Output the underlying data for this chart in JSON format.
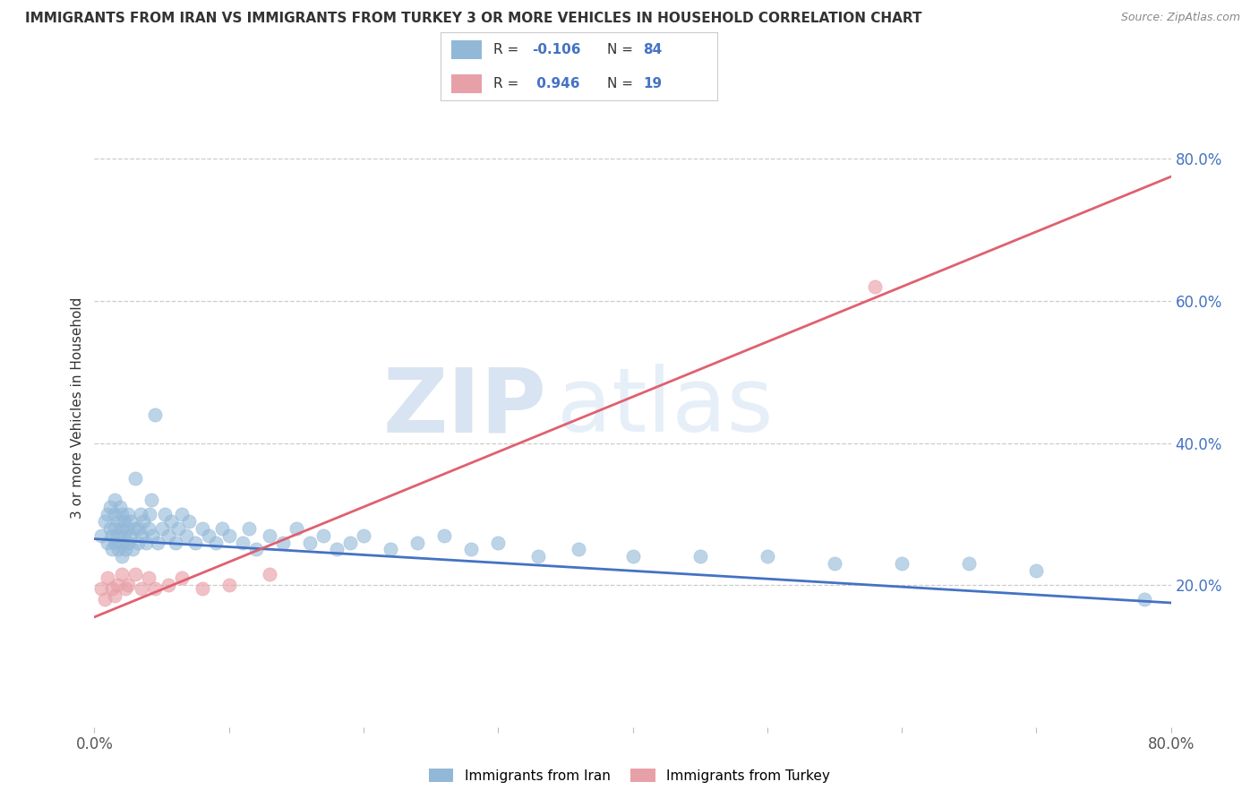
{
  "title": "IMMIGRANTS FROM IRAN VS IMMIGRANTS FROM TURKEY 3 OR MORE VEHICLES IN HOUSEHOLD CORRELATION CHART",
  "source": "Source: ZipAtlas.com",
  "ylabel": "3 or more Vehicles in Household",
  "xlim": [
    0,
    0.8
  ],
  "ylim": [
    0,
    0.9
  ],
  "right_yticks": [
    0.2,
    0.4,
    0.6,
    0.8
  ],
  "right_yticklabels": [
    "20.0%",
    "40.0%",
    "60.0%",
    "80.0%"
  ],
  "iran_color": "#92b8d8",
  "turkey_color": "#e8a0a8",
  "iran_line_color": "#4472c4",
  "turkey_line_color": "#e06070",
  "iran_R": -0.106,
  "iran_N": 84,
  "turkey_R": 0.946,
  "turkey_N": 19,
  "legend_iran_label": "Immigrants from Iran",
  "legend_turkey_label": "Immigrants from Turkey",
  "watermark_zip": "ZIP",
  "watermark_atlas": "atlas",
  "background_color": "#ffffff",
  "iran_scatter_x": [
    0.005,
    0.008,
    0.01,
    0.01,
    0.012,
    0.012,
    0.013,
    0.013,
    0.015,
    0.015,
    0.015,
    0.015,
    0.017,
    0.018,
    0.018,
    0.019,
    0.02,
    0.02,
    0.02,
    0.02,
    0.022,
    0.022,
    0.023,
    0.024,
    0.025,
    0.025,
    0.026,
    0.027,
    0.028,
    0.03,
    0.03,
    0.032,
    0.033,
    0.034,
    0.035,
    0.036,
    0.038,
    0.04,
    0.041,
    0.042,
    0.043,
    0.045,
    0.047,
    0.05,
    0.052,
    0.055,
    0.057,
    0.06,
    0.062,
    0.065,
    0.068,
    0.07,
    0.075,
    0.08,
    0.085,
    0.09,
    0.095,
    0.1,
    0.11,
    0.115,
    0.12,
    0.13,
    0.14,
    0.15,
    0.16,
    0.17,
    0.18,
    0.19,
    0.2,
    0.22,
    0.24,
    0.26,
    0.28,
    0.3,
    0.33,
    0.36,
    0.4,
    0.45,
    0.5,
    0.55,
    0.6,
    0.65,
    0.7,
    0.78
  ],
  "iran_scatter_y": [
    0.27,
    0.29,
    0.26,
    0.3,
    0.28,
    0.31,
    0.25,
    0.27,
    0.26,
    0.28,
    0.3,
    0.32,
    0.27,
    0.25,
    0.29,
    0.31,
    0.24,
    0.26,
    0.28,
    0.3,
    0.27,
    0.29,
    0.25,
    0.28,
    0.26,
    0.3,
    0.27,
    0.29,
    0.25,
    0.28,
    0.35,
    0.26,
    0.28,
    0.3,
    0.27,
    0.29,
    0.26,
    0.28,
    0.3,
    0.32,
    0.27,
    0.44,
    0.26,
    0.28,
    0.3,
    0.27,
    0.29,
    0.26,
    0.28,
    0.3,
    0.27,
    0.29,
    0.26,
    0.28,
    0.27,
    0.26,
    0.28,
    0.27,
    0.26,
    0.28,
    0.25,
    0.27,
    0.26,
    0.28,
    0.26,
    0.27,
    0.25,
    0.26,
    0.27,
    0.25,
    0.26,
    0.27,
    0.25,
    0.26,
    0.24,
    0.25,
    0.24,
    0.24,
    0.24,
    0.23,
    0.23,
    0.23,
    0.22,
    0.18
  ],
  "turkey_scatter_x": [
    0.005,
    0.008,
    0.01,
    0.013,
    0.015,
    0.017,
    0.02,
    0.023,
    0.025,
    0.03,
    0.035,
    0.04,
    0.045,
    0.055,
    0.065,
    0.08,
    0.1,
    0.13,
    0.58
  ],
  "turkey_scatter_y": [
    0.195,
    0.18,
    0.21,
    0.195,
    0.185,
    0.2,
    0.215,
    0.195,
    0.2,
    0.215,
    0.195,
    0.21,
    0.195,
    0.2,
    0.21,
    0.195,
    0.2,
    0.215,
    0.62
  ],
  "iran_line_x0": 0.0,
  "iran_line_x1": 0.8,
  "iran_line_y0": 0.265,
  "iran_line_y1": 0.175,
  "turkey_line_x0": 0.0,
  "turkey_line_x1": 0.8,
  "turkey_line_y0": 0.155,
  "turkey_line_y1": 0.775
}
